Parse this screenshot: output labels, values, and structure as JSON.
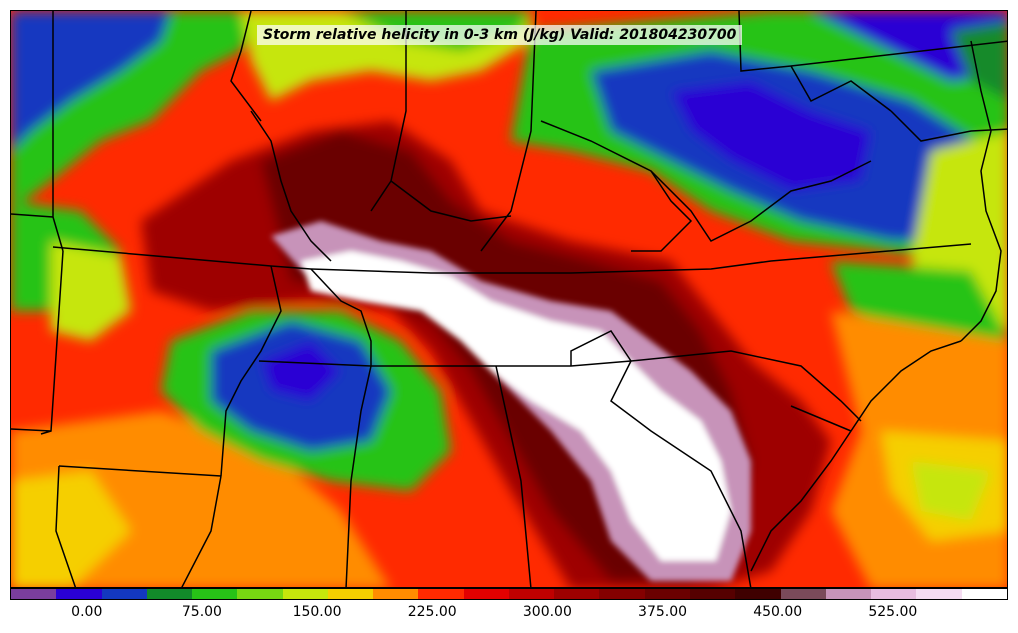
{
  "title": "Storm relative helicity in 0-3 km (J/kg) Valid: 201804230700",
  "colorbar": {
    "colors": [
      "#7a3e9d",
      "#2a00d4",
      "#1338c0",
      "#128a2a",
      "#27c317",
      "#78d712",
      "#c6e60c",
      "#f5cf00",
      "#ff8c00",
      "#ff2a00",
      "#e30000",
      "#bf0000",
      "#9e0000",
      "#840000",
      "#6b0000",
      "#560000",
      "#3f0000",
      "#7a4a5a",
      "#c793b9",
      "#e8bde0",
      "#f5dcf2",
      "#ffffff"
    ],
    "ticks": [
      {
        "label": "0.00",
        "value": 0
      },
      {
        "label": "75.00",
        "value": 75
      },
      {
        "label": "150.00",
        "value": 150
      },
      {
        "label": "225.00",
        "value": 225
      },
      {
        "label": "300.00",
        "value": 300
      },
      {
        "label": "375.00",
        "value": 375
      },
      {
        "label": "450.00",
        "value": 450
      },
      {
        "label": "525.00",
        "value": 525
      }
    ],
    "min": -50,
    "max": 600
  },
  "map": {
    "background_color": "#ff2a00",
    "fields": [
      {
        "name": "west-green-band",
        "color": "#27c317"
      },
      {
        "name": "northwest-blue",
        "color": "#1338c0"
      },
      {
        "name": "ohio-valley-green",
        "color": "#27c317"
      },
      {
        "name": "appalachian-blue",
        "color": "#2a00d4"
      },
      {
        "name": "east-yellowgreen",
        "color": "#c6e60c"
      },
      {
        "name": "central-darkred",
        "color": "#9e0000"
      },
      {
        "name": "south-orange",
        "color": "#ff8c00"
      },
      {
        "name": "southeast-yellow",
        "color": "#f5cf00"
      },
      {
        "name": "southwest-green",
        "color": "#27c317"
      },
      {
        "name": "max-helicity-core",
        "color": "#ffffff"
      }
    ],
    "boundary_color": "#000000"
  }
}
